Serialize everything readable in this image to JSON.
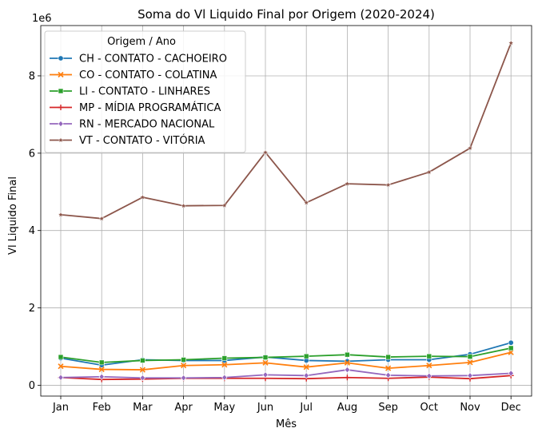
{
  "chart_data": {
    "type": "line",
    "title": "Soma do Vl Liquido Final por Origem (2020-2024)",
    "xlabel": "Mês",
    "ylabel": "Vl Liquido Final",
    "y_offset_label": "1e6",
    "categories": [
      "Jan",
      "Feb",
      "Mar",
      "Apr",
      "May",
      "Jun",
      "Jul",
      "Aug",
      "Sep",
      "Oct",
      "Nov",
      "Dec"
    ],
    "ylim": [
      -0.28,
      9.3
    ],
    "yticks": [
      0,
      2,
      4,
      6,
      8
    ],
    "ytick_labels": [
      "0",
      "2",
      "4",
      "6",
      "8"
    ],
    "grid": true,
    "legend_title": "Origem / Ano",
    "legend_position": "top-left",
    "series": [
      {
        "name": "CH - CONTATO - CACHOEIRO",
        "color": "#1f77b4",
        "marker": "circle",
        "values": [
          0.7,
          0.52,
          0.66,
          0.64,
          0.64,
          0.73,
          0.64,
          0.62,
          0.66,
          0.66,
          0.8,
          1.1
        ]
      },
      {
        "name": "CO - CONTATO - COLATINA",
        "color": "#ff7f0e",
        "marker": "x",
        "values": [
          0.49,
          0.41,
          0.4,
          0.51,
          0.53,
          0.58,
          0.47,
          0.58,
          0.44,
          0.51,
          0.59,
          0.85
        ]
      },
      {
        "name": "LI - CONTATO - LINHARES",
        "color": "#2ca02c",
        "marker": "square",
        "values": [
          0.73,
          0.59,
          0.64,
          0.66,
          0.7,
          0.72,
          0.75,
          0.79,
          0.73,
          0.75,
          0.74,
          0.96
        ]
      },
      {
        "name": "MP - MÍDIA PROGRAMÁTICA",
        "color": "#d62728",
        "marker": "plus",
        "values": [
          0.2,
          0.15,
          0.16,
          0.18,
          0.18,
          0.18,
          0.17,
          0.2,
          0.18,
          0.21,
          0.17,
          0.25
        ]
      },
      {
        "name": "RN - MERCADO NACIONAL",
        "color": "#9467bd",
        "marker": "diamond",
        "values": [
          0.2,
          0.22,
          0.19,
          0.19,
          0.2,
          0.27,
          0.25,
          0.4,
          0.26,
          0.24,
          0.25,
          0.31
        ]
      },
      {
        "name": "VT - CONTATO - VITÓRIA",
        "color": "#8c564b",
        "marker": "star",
        "values": [
          4.41,
          4.31,
          4.86,
          4.64,
          4.65,
          6.02,
          4.72,
          5.21,
          5.18,
          5.51,
          6.13,
          8.85
        ]
      }
    ]
  }
}
